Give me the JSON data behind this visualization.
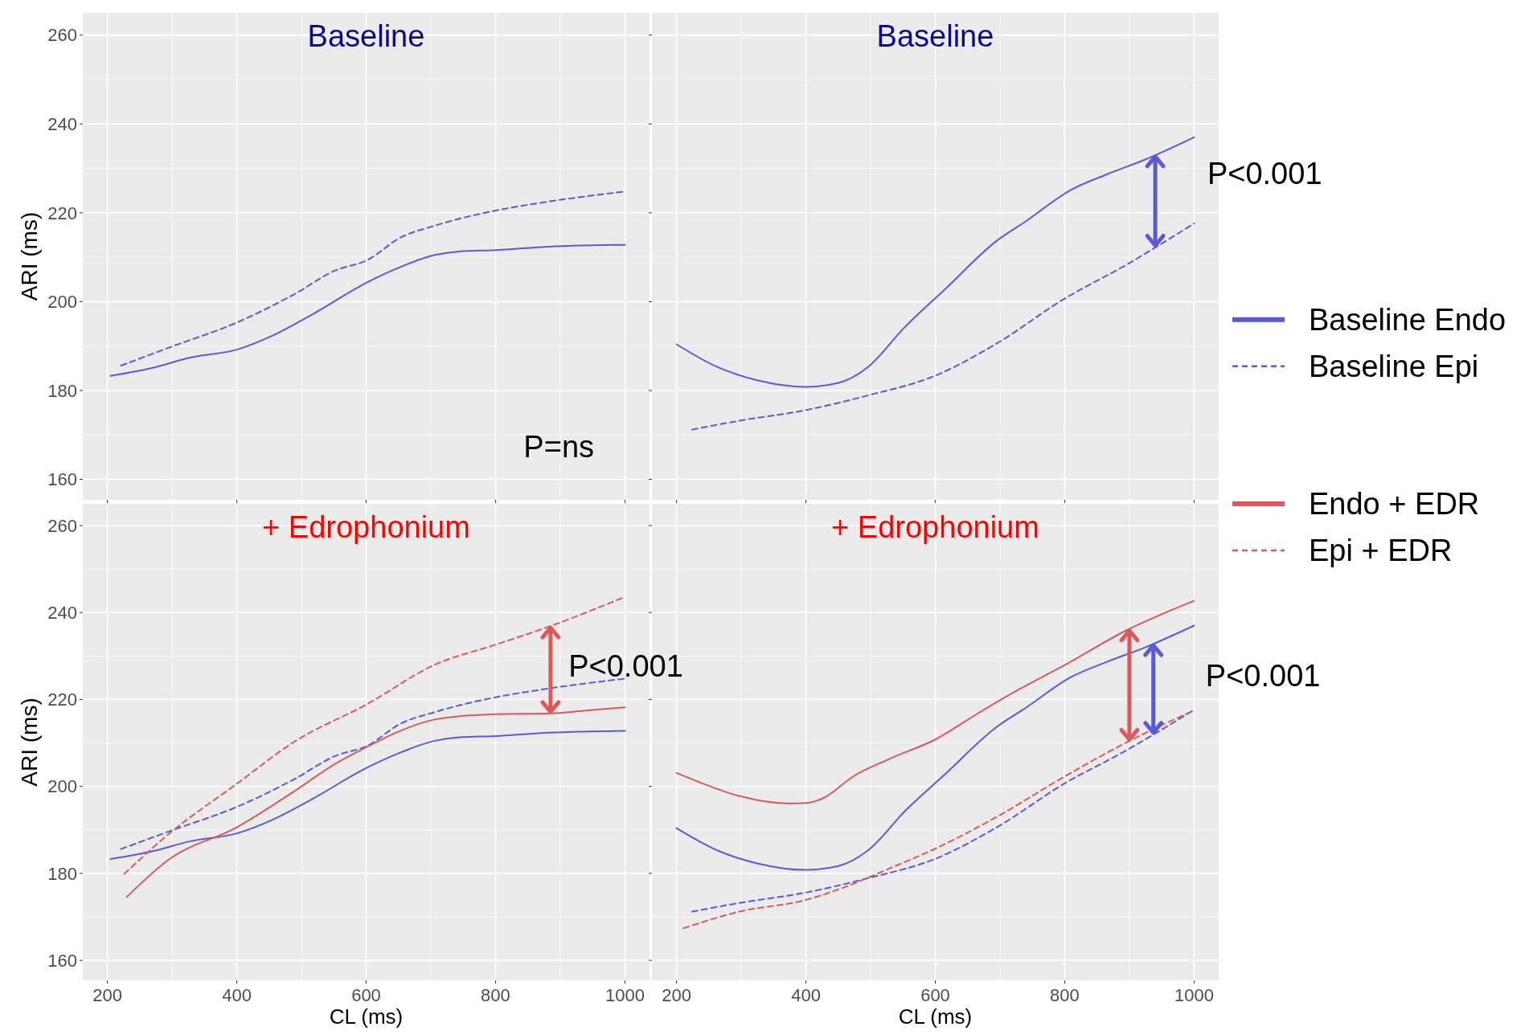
{
  "chart_data": [
    {
      "type": "line",
      "title": "Baseline",
      "ylabel": "ARI (ms)",
      "xlim": [
        162,
        1038
      ],
      "ylim": [
        155.4,
        265
      ],
      "xticks": [
        200,
        400,
        600,
        800,
        1000
      ],
      "yticks": [
        160,
        180,
        200,
        220,
        240,
        260
      ],
      "grid": true,
      "tick_labels": "y",
      "annotations": [
        "P=ns"
      ],
      "series": [
        {
          "color": "#5a5ad8",
          "line_style": "solid",
          "x": [
            205,
            270,
            328,
            400,
            456,
            520,
            601,
            648,
            706,
            744,
            800,
            872,
            1000
          ],
          "values": [
            183.3,
            185.1,
            187.4,
            189.2,
            192.4,
            197.4,
            204.3,
            207.5,
            210.5,
            211.3,
            211.6,
            212.3,
            212.8
          ]
        },
        {
          "color": "#5a5ad8",
          "line_style": "dashed",
          "x": [
            221,
            296,
            400,
            488,
            552,
            601,
            654,
            706,
            800,
            872,
            1000
          ],
          "values": [
            185.6,
            189.7,
            195.3,
            201.6,
            207.0,
            209.3,
            214.5,
            217.1,
            220.5,
            222.3,
            224.8
          ]
        }
      ]
    },
    {
      "type": "line",
      "title": "Baseline",
      "xlim": [
        162,
        1038
      ],
      "ylim": [
        155.4,
        265
      ],
      "xticks": [
        200,
        400,
        600,
        800,
        1000
      ],
      "yticks": [
        160,
        180,
        200,
        220,
        240,
        260
      ],
      "grid": true,
      "tick_labels": false,
      "legend": "right",
      "annotations": [
        "P<0.001"
      ],
      "series": [
        {
          "name": "Baseline Endo",
          "color": "#5a5ad8",
          "line_style": "solid",
          "x": [
            200,
            263,
            325,
            400,
            450,
            496,
            553,
            615,
            695,
            741,
            809,
            866,
            923,
            1000
          ],
          "values": [
            190.4,
            185.3,
            182.3,
            180.8,
            181.7,
            185.3,
            194.3,
            202.8,
            213.7,
            218.2,
            225.1,
            228.7,
            231.9,
            237.0
          ]
        },
        {
          "name": "Baseline Epi",
          "color": "#5a5ad8",
          "line_style": "dashed",
          "x": [
            224,
            297,
            400,
            496,
            599,
            695,
            800,
            894,
            1000
          ],
          "values": [
            171.2,
            173.2,
            175.6,
            178.9,
            183.3,
            190.6,
            200.7,
            208.2,
            217.6
          ]
        }
      ]
    },
    {
      "type": "line",
      "title": "+ Edrophonium",
      "xlabel": "CL (ms)",
      "ylabel": "ARI (ms)",
      "xlim": [
        162,
        1038
      ],
      "ylim": [
        155.4,
        265
      ],
      "xticks": [
        200,
        400,
        600,
        800,
        1000
      ],
      "yticks": [
        160,
        180,
        200,
        220,
        240,
        260
      ],
      "grid": true,
      "annotations": [
        {
          "text": "P<0.001",
          "x": 885,
          "y": 236.9
        }
      ],
      "series": [
        {
          "color": "#5a5ad8",
          "line_style": "solid",
          "x": [
            205,
            270,
            328,
            400,
            456,
            520,
            601,
            648,
            706,
            744,
            800,
            872,
            1000
          ],
          "values": [
            183.3,
            185.1,
            187.4,
            189.2,
            192.4,
            197.4,
            204.3,
            207.5,
            210.5,
            211.3,
            211.6,
            212.3,
            212.8
          ]
        },
        {
          "color": "#5a5ad8",
          "line_style": "dashed",
          "x": [
            221,
            296,
            400,
            488,
            552,
            601,
            654,
            706,
            800,
            872,
            1000
          ],
          "values": [
            185.6,
            189.7,
            195.3,
            201.6,
            207.0,
            209.3,
            214.5,
            217.1,
            220.5,
            222.3,
            224.8
          ]
        },
        {
          "color": "#d85a5a",
          "line_style": "solid",
          "x": [
            230,
            296,
            400,
            488,
            552,
            601,
            648,
            706,
            800,
            885,
            936,
            1000
          ],
          "values": [
            174.6,
            183.3,
            190.6,
            198.8,
            205.2,
            209.1,
            212.5,
            215.4,
            216.6,
            216.8,
            217.4,
            218.2
          ]
        },
        {
          "color": "#d85a5a",
          "line_style": "dashed",
          "x": [
            226,
            296,
            400,
            488,
            601,
            706,
            800,
            885,
            1000
          ],
          "values": [
            179.9,
            189.2,
            200.6,
            210.2,
            218.9,
            228.0,
            232.6,
            236.9,
            243.6
          ]
        }
      ]
    },
    {
      "type": "line",
      "title": "+ Edrophonium",
      "xlabel": "CL (ms)",
      "xlim": [
        162,
        1038
      ],
      "ylim": [
        155.4,
        265
      ],
      "xticks": [
        200,
        400,
        600,
        800,
        1000
      ],
      "yticks": [
        160,
        180,
        200,
        220,
        240,
        260
      ],
      "grid": true,
      "tick_labels": "x",
      "legend": "right",
      "annotations": [
        "P<0.001"
      ],
      "series": [
        {
          "color": "#5a5ad8",
          "line_style": "solid",
          "x": [
            200,
            263,
            325,
            400,
            450,
            496,
            553,
            615,
            695,
            741,
            809,
            866,
            923,
            1000
          ],
          "values": [
            190.4,
            185.3,
            182.3,
            180.8,
            181.7,
            185.3,
            194.3,
            202.8,
            213.7,
            218.2,
            225.1,
            228.7,
            231.9,
            237.0
          ]
        },
        {
          "color": "#5a5ad8",
          "line_style": "dashed",
          "x": [
            224,
            297,
            400,
            496,
            599,
            695,
            800,
            894,
            1000
          ],
          "values": [
            171.2,
            173.2,
            175.6,
            178.9,
            183.3,
            190.6,
            200.7,
            208.2,
            217.6
          ]
        },
        {
          "name": "Endo + EDR",
          "color": "#d85a5a",
          "line_style": "solid",
          "x": [
            200,
            240,
            297,
            371,
            400,
            428,
            473,
            530,
            600,
            667,
            723,
            800,
            894,
            1000
          ],
          "values": [
            203.1,
            200.7,
            197.8,
            196.1,
            196.2,
            197.4,
            202.3,
            206.4,
            210.8,
            216.9,
            221.8,
            227.9,
            235.8,
            242.7
          ]
        },
        {
          "name": "Epi + EDR",
          "color": "#d85a5a",
          "line_style": "dashed",
          "x": [
            211,
            297,
            400,
            473,
            524,
            600,
            695,
            800,
            894,
            1000
          ],
          "values": [
            167.4,
            171.2,
            173.9,
            177.6,
            180.8,
            185.7,
            193.0,
            202.3,
            210.0,
            217.5
          ]
        }
      ]
    }
  ]
}
